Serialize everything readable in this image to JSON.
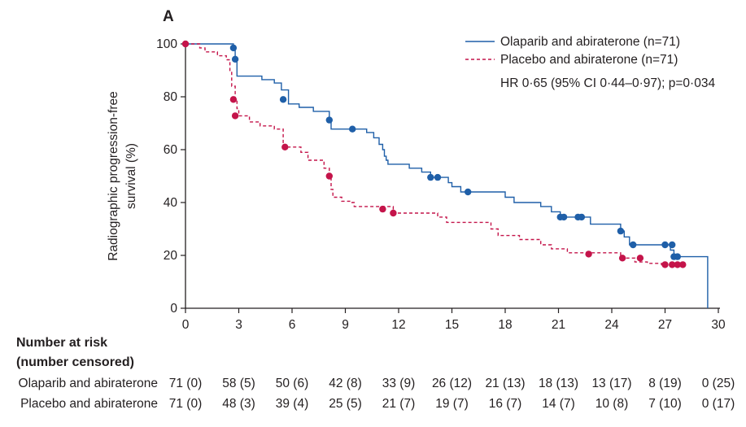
{
  "chart_data": {
    "type": "line",
    "step": true,
    "panel_label": "A",
    "xlabel": "",
    "ylabel": "Radiographic progression-free survival (%)",
    "ylabel_lines": [
      "Radiographic progression-free",
      "survival (%)"
    ],
    "xlim": [
      0,
      30
    ],
    "ylim": [
      0,
      100
    ],
    "xticks": [
      0,
      3,
      6,
      9,
      12,
      15,
      18,
      21,
      24,
      27,
      30
    ],
    "yticks": [
      0,
      20,
      40,
      60,
      80,
      100
    ],
    "legend": {
      "position": "top-right",
      "note": "HR 0·65 (95% CI 0·44–0·97); p=0·034"
    },
    "series": [
      {
        "name": "Olaparib and abiraterone (n=71)",
        "color": "#1f5fa8",
        "dash": false,
        "steps": [
          [
            0,
            100
          ],
          [
            2.7,
            98.5
          ],
          [
            2.8,
            94.2
          ],
          [
            2.9,
            87.8
          ],
          [
            4.3,
            86.5
          ],
          [
            5,
            85.2
          ],
          [
            5.4,
            82.6
          ],
          [
            5.8,
            77.3
          ],
          [
            6.4,
            76
          ],
          [
            7.2,
            74.5
          ],
          [
            8.1,
            71.2
          ],
          [
            8.2,
            67.8
          ],
          [
            9.7,
            67.8
          ],
          [
            10.2,
            66.5
          ],
          [
            10.6,
            64.5
          ],
          [
            10.9,
            62
          ],
          [
            11.1,
            60
          ],
          [
            11.2,
            57.5
          ],
          [
            11.3,
            56
          ],
          [
            11.4,
            54.5
          ],
          [
            12.6,
            53
          ],
          [
            13.3,
            51.5
          ],
          [
            13.8,
            49.5
          ],
          [
            14.8,
            47.5
          ],
          [
            15,
            46
          ],
          [
            15.5,
            44
          ],
          [
            18,
            42
          ],
          [
            18.5,
            40
          ],
          [
            20,
            38.5
          ],
          [
            20.6,
            36.5
          ],
          [
            21.1,
            34.5
          ],
          [
            22.8,
            31.8
          ],
          [
            24.5,
            29.2
          ],
          [
            24.7,
            27
          ],
          [
            25,
            24
          ],
          [
            26.3,
            24
          ],
          [
            27.2,
            24
          ],
          [
            27.3,
            22
          ],
          [
            27.5,
            19.5
          ],
          [
            29.4,
            19.5
          ],
          [
            29.4,
            0
          ]
        ],
        "censored": [
          [
            2.7,
            98.5
          ],
          [
            2.8,
            94.2
          ],
          [
            5.5,
            79
          ],
          [
            8.1,
            71.2
          ],
          [
            9.4,
            67.8
          ],
          [
            13.8,
            49.5
          ],
          [
            14.2,
            49.5
          ],
          [
            15.9,
            44
          ],
          [
            21.1,
            34.5
          ],
          [
            21.3,
            34.5
          ],
          [
            22.1,
            34.5
          ],
          [
            22.3,
            34.5
          ],
          [
            24.5,
            29.2
          ],
          [
            25.2,
            24
          ],
          [
            27,
            24
          ],
          [
            27.4,
            24
          ],
          [
            27.5,
            19.5
          ],
          [
            27.7,
            19.5
          ]
        ]
      },
      {
        "name": "Placebo and abiraterone (n=71)",
        "color": "#c4144a",
        "dash": true,
        "steps": [
          [
            0,
            100
          ],
          [
            0.8,
            98.5
          ],
          [
            1.1,
            97
          ],
          [
            1.8,
            95.5
          ],
          [
            2.3,
            94
          ],
          [
            2.5,
            89.5
          ],
          [
            2.6,
            84
          ],
          [
            2.8,
            78.8
          ],
          [
            2.9,
            75.5
          ],
          [
            3,
            72.8
          ],
          [
            3.6,
            70.5
          ],
          [
            4.2,
            69
          ],
          [
            5,
            67.8
          ],
          [
            5.5,
            61
          ],
          [
            6.5,
            59
          ],
          [
            6.9,
            56
          ],
          [
            7.8,
            53
          ],
          [
            8.1,
            50
          ],
          [
            8.2,
            45
          ],
          [
            8.3,
            42
          ],
          [
            8.8,
            40.5
          ],
          [
            9.3,
            40
          ],
          [
            9.5,
            38.5
          ],
          [
            11.7,
            36
          ],
          [
            14.2,
            34.5
          ],
          [
            14.7,
            32.5
          ],
          [
            17.2,
            30
          ],
          [
            17.6,
            27.5
          ],
          [
            18.8,
            26
          ],
          [
            20,
            24
          ],
          [
            20.6,
            22.5
          ],
          [
            21.5,
            21
          ],
          [
            24.5,
            19
          ],
          [
            25.3,
            17.5
          ],
          [
            26,
            17
          ],
          [
            26.8,
            16.5
          ],
          [
            28,
            16.5
          ]
        ],
        "censored": [
          [
            0,
            100
          ],
          [
            2.7,
            79
          ],
          [
            2.8,
            72.8
          ],
          [
            5.6,
            61
          ],
          [
            8.1,
            50
          ],
          [
            11.1,
            37.5
          ],
          [
            11.7,
            36
          ],
          [
            22.7,
            20.5
          ],
          [
            24.6,
            19
          ],
          [
            25.6,
            19
          ],
          [
            27,
            16.5
          ],
          [
            27.4,
            16.5
          ],
          [
            27.7,
            16.5
          ],
          [
            28,
            16.5
          ]
        ]
      }
    ]
  },
  "risk_table": {
    "header_lines": [
      "Number at risk",
      "(number censored)"
    ],
    "rows": [
      {
        "label": "Olaparib and abiraterone",
        "values": [
          "71 (0)",
          "58 (5)",
          "50 (6)",
          "42 (8)",
          "33 (9)",
          "26 (12)",
          "21 (13)",
          "18 (13)",
          "13 (17)",
          "8 (19)",
          "0 (25)"
        ]
      },
      {
        "label": "Placebo and abiraterone",
        "values": [
          "71 (0)",
          "48 (3)",
          "39 (4)",
          "25 (5)",
          "21 (7)",
          "19 (7)",
          "16 (7)",
          "14 (7)",
          "10 (8)",
          "7 (10)",
          "0 (17)"
        ]
      }
    ]
  }
}
